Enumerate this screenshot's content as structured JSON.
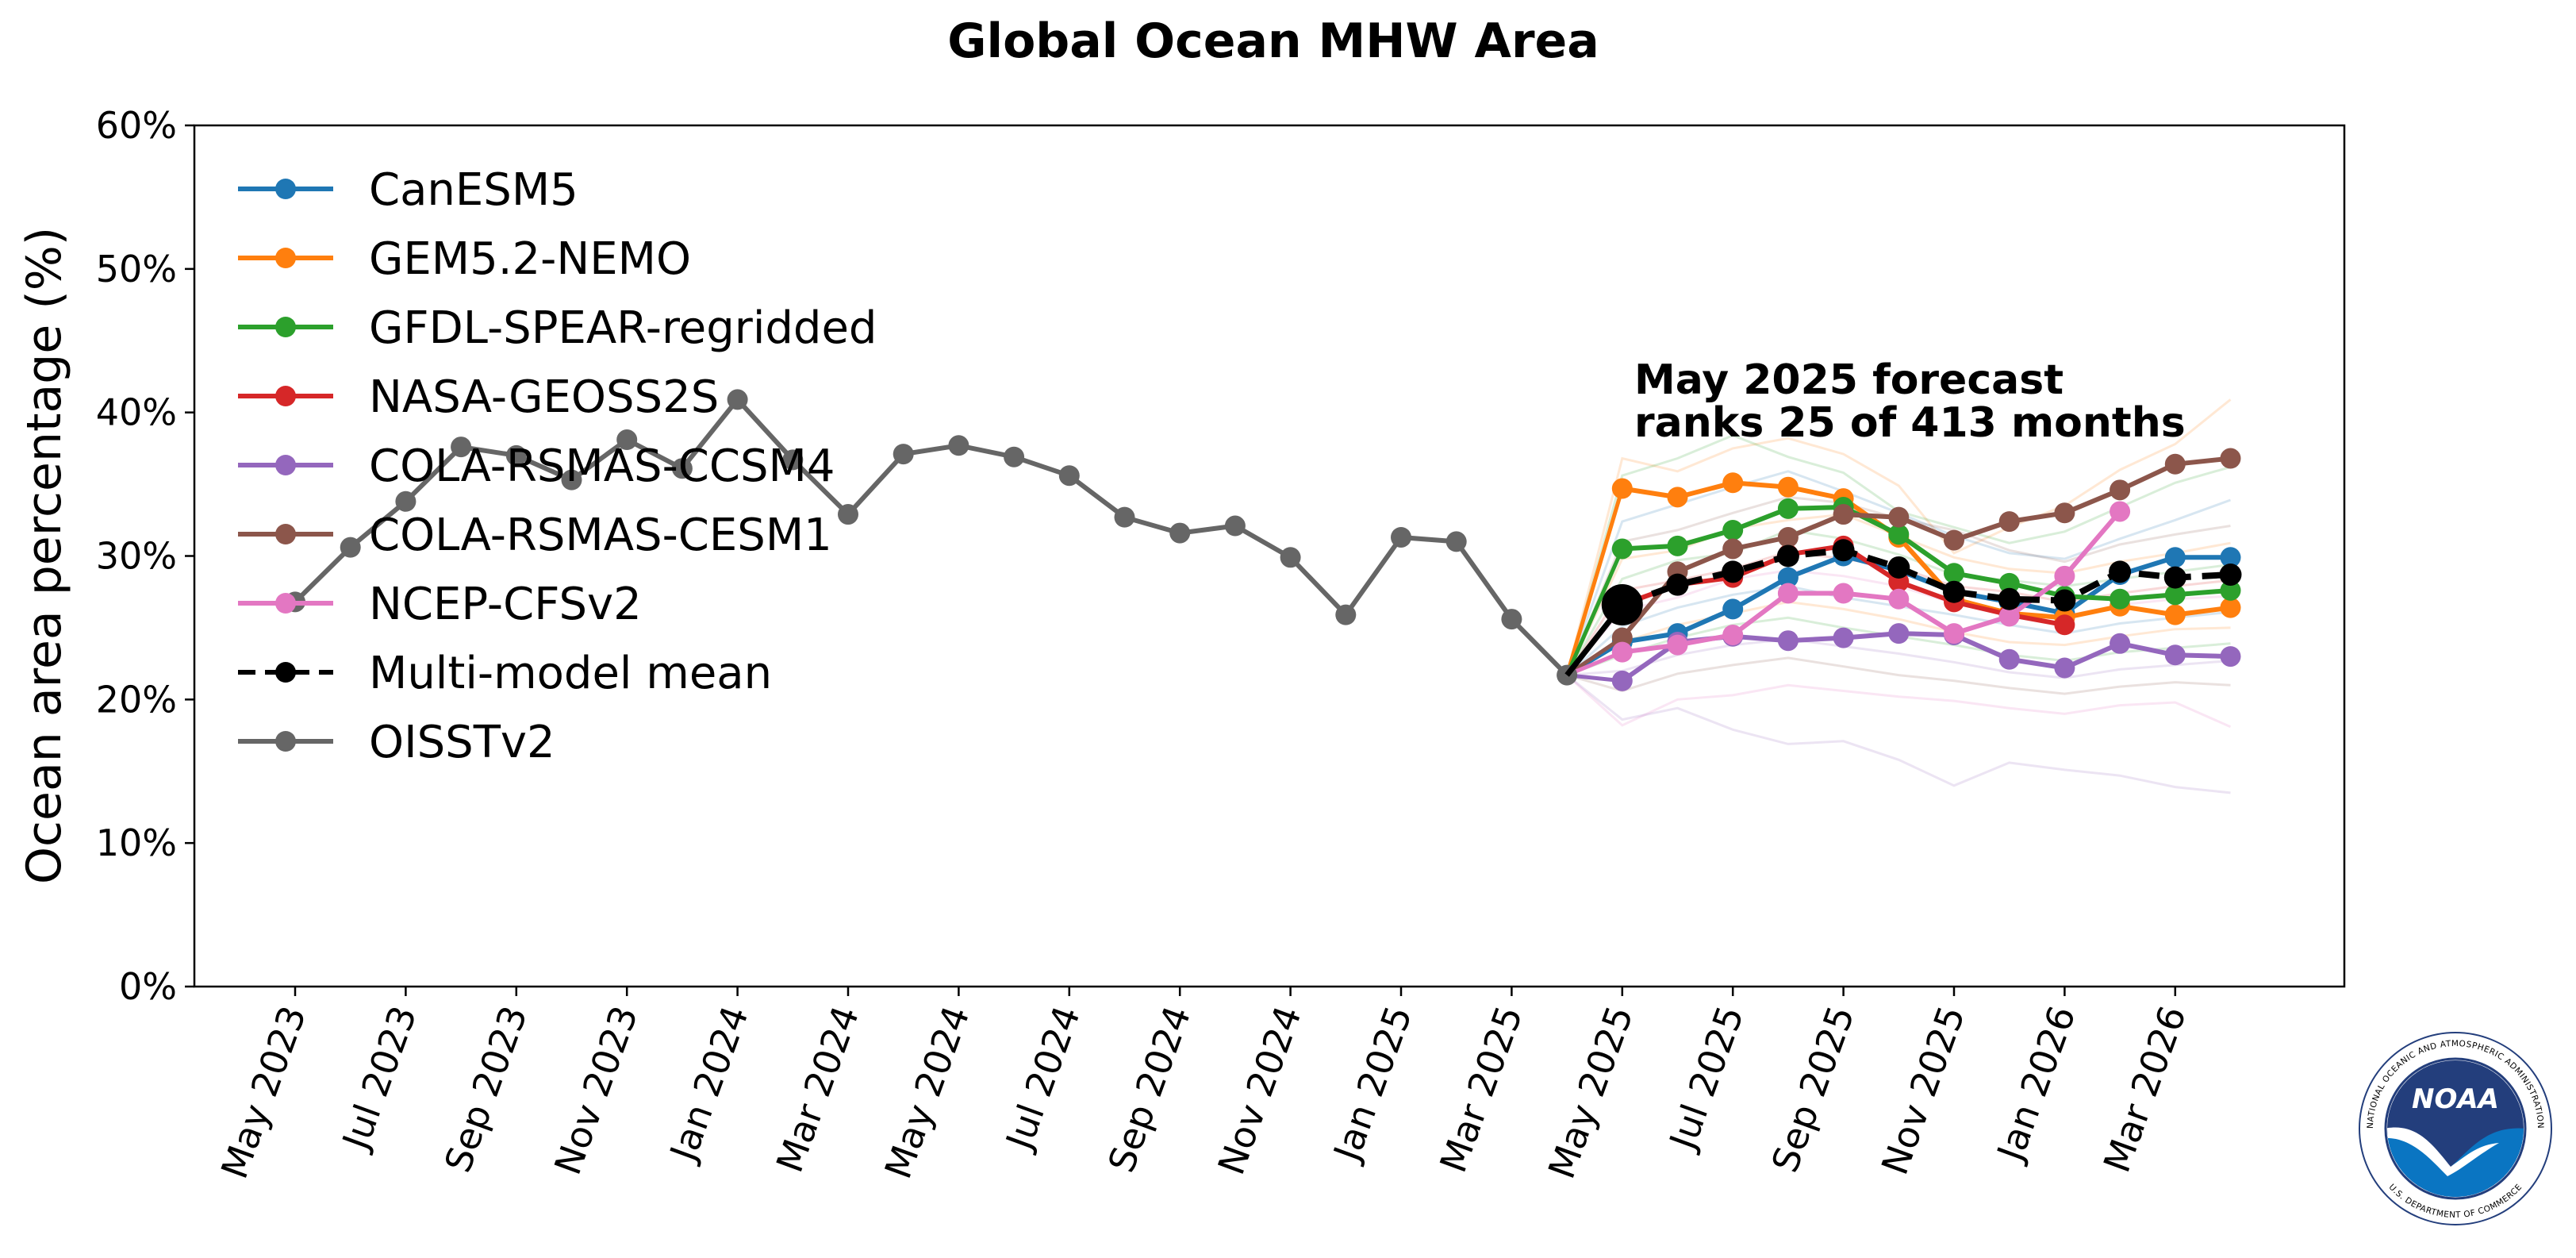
{
  "chart_data": {
    "type": "line",
    "title": "Global Ocean MHW Area",
    "ylabel": "Ocean area percentage (%)",
    "xlabel": "",
    "ylim": [
      0,
      60
    ],
    "yticks": [
      "0%",
      "10%",
      "20%",
      "30%",
      "40%",
      "50%",
      "60%"
    ],
    "yticks_values": [
      0,
      10,
      20,
      30,
      40,
      50,
      60
    ],
    "x_months": [
      "2023-05",
      "2023-06",
      "2023-07",
      "2023-08",
      "2023-09",
      "2023-10",
      "2023-11",
      "2023-12",
      "2024-01",
      "2024-02",
      "2024-03",
      "2024-04",
      "2024-05",
      "2024-06",
      "2024-07",
      "2024-08",
      "2024-09",
      "2024-10",
      "2024-11",
      "2024-12",
      "2025-01",
      "2025-02",
      "2025-03",
      "2025-04",
      "2025-05",
      "2025-06",
      "2025-07",
      "2025-08",
      "2025-09",
      "2025-10",
      "2025-11",
      "2025-12",
      "2026-01",
      "2026-02",
      "2026-03",
      "2026-04"
    ],
    "xtick_labels": [
      "May 2023",
      "Jul 2023",
      "Sep 2023",
      "Nov 2023",
      "Jan 2024",
      "Mar 2024",
      "May 2024",
      "Jul 2024",
      "Sep 2024",
      "Nov 2024",
      "Jan 2025",
      "Mar 2025",
      "May 2025",
      "Jul 2025",
      "Sep 2025",
      "Nov 2025",
      "Jan 2026",
      "Mar 2026"
    ],
    "xtick_indices": [
      0,
      2,
      4,
      6,
      8,
      10,
      12,
      14,
      16,
      18,
      20,
      22,
      24,
      26,
      28,
      30,
      32,
      34
    ],
    "observed": {
      "name": "OISSTv2",
      "color": "#666666",
      "start_index": 0,
      "values": [
        26.8,
        30.6,
        33.8,
        37.6,
        37.0,
        35.3,
        38.1,
        36.1,
        40.9,
        36.7,
        32.9,
        37.1,
        37.7,
        36.9,
        35.6,
        32.7,
        31.6,
        32.1,
        29.9,
        25.9,
        31.3,
        31.0,
        25.6,
        21.7
      ]
    },
    "anchor_index": 23,
    "anchor_value": 21.7,
    "forecast_start_index": 24,
    "series": [
      {
        "name": "CanESM5",
        "color": "#1f77b4",
        "values": [
          24.0,
          24.6,
          26.3,
          28.5,
          30.0,
          29.0,
          27.5,
          26.8,
          26.0,
          28.7,
          29.9,
          29.9
        ]
      },
      {
        "name": "GEM5.2-NEMO",
        "color": "#ff7f0e",
        "values": [
          34.7,
          34.1,
          35.1,
          34.8,
          34.0,
          31.3,
          27.0,
          26.0,
          25.7,
          26.5,
          25.9,
          26.4
        ]
      },
      {
        "name": "GFDL-SPEAR-regridded",
        "color": "#2ca02c",
        "values": [
          30.5,
          30.7,
          31.8,
          33.3,
          33.4,
          31.5,
          28.8,
          28.1,
          27.2,
          27.0,
          27.3,
          27.6
        ]
      },
      {
        "name": "NASA-GEOSS2S",
        "color": "#d62728",
        "values": [
          26.6,
          28.0,
          28.5,
          30.1,
          30.7,
          28.2,
          26.8,
          25.9,
          25.2
        ]
      },
      {
        "name": "COLA-RSMAS-CCSM4",
        "color": "#9467bd",
        "values": [
          21.3,
          24.0,
          24.4,
          24.1,
          24.3,
          24.6,
          24.5,
          22.8,
          22.2,
          23.9,
          23.1,
          23.0
        ]
      },
      {
        "name": "COLA-RSMAS-CESM1",
        "color": "#8c564b",
        "values": [
          24.3,
          28.9,
          30.5,
          31.3,
          32.9,
          32.7,
          31.1,
          32.4,
          33.0,
          34.6,
          36.4,
          36.8
        ]
      },
      {
        "name": "NCEP-CFSv2",
        "color": "#e377c2",
        "values": [
          23.3,
          23.8,
          24.5,
          27.4,
          27.4,
          27.0,
          24.6,
          25.8,
          28.6,
          33.1
        ]
      }
    ],
    "mean": {
      "name": "Multi-model mean",
      "color": "#000000",
      "values": [
        26.6,
        28.0,
        28.9,
        30.0,
        30.4,
        29.2,
        27.5,
        27.0,
        26.9,
        28.9,
        28.5,
        28.7
      ]
    },
    "ensemble_spread": [
      [
        36.8,
        35.9,
        37.5,
        38.2,
        37.1,
        34.9,
        30.2,
        32.0,
        33.5,
        36.0,
        37.8,
        40.9
      ],
      [
        35.6,
        36.8,
        38.4,
        36.9,
        35.8,
        33.1,
        32.0,
        30.9,
        31.7,
        33.4,
        35.1,
        36.2
      ],
      [
        32.4,
        33.6,
        34.8,
        35.9,
        34.5,
        33.0,
        31.4,
        30.2,
        29.8,
        31.2,
        32.5,
        33.9
      ],
      [
        31.0,
        31.8,
        33.0,
        34.1,
        33.7,
        32.6,
        31.8,
        30.4,
        29.6,
        30.8,
        31.5,
        32.1
      ],
      [
        29.8,
        30.4,
        31.9,
        32.5,
        32.9,
        31.4,
        29.9,
        29.1,
        28.8,
        29.6,
        30.2,
        30.9
      ],
      [
        28.4,
        29.7,
        30.2,
        31.8,
        31.2,
        30.1,
        28.7,
        28.3,
        27.9,
        28.4,
        28.9,
        29.4
      ],
      [
        27.6,
        28.3,
        29.1,
        30.3,
        29.8,
        29.2,
        27.9,
        27.5,
        26.8,
        27.4,
        27.9,
        28.3
      ],
      [
        26.2,
        27.1,
        28.4,
        29.0,
        28.6,
        27.9,
        26.7,
        26.0,
        25.8,
        26.6,
        27.0,
        27.2
      ],
      [
        25.1,
        26.4,
        27.3,
        27.9,
        27.1,
        26.5,
        25.9,
        25.2,
        24.6,
        25.3,
        25.7,
        26.1
      ],
      [
        24.0,
        25.2,
        26.0,
        26.8,
        26.3,
        25.6,
        24.7,
        24.0,
        23.8,
        24.4,
        24.9,
        25.0
      ],
      [
        23.1,
        24.3,
        25.2,
        25.7,
        25.0,
        24.4,
        23.8,
        23.1,
        22.7,
        23.3,
        23.6,
        23.9
      ],
      [
        22.0,
        23.1,
        23.8,
        24.2,
        23.7,
        23.2,
        22.6,
        21.9,
        21.5,
        22.1,
        22.4,
        22.7
      ],
      [
        20.6,
        21.8,
        22.4,
        22.9,
        22.3,
        21.7,
        21.3,
        20.8,
        20.4,
        20.9,
        21.2,
        21.0
      ],
      [
        18.2,
        20.0,
        20.3,
        21.0,
        20.6,
        20.2,
        19.9,
        19.4,
        19.0,
        19.6,
        19.8,
        18.1
      ],
      [
        18.6,
        19.4,
        17.9,
        16.9,
        17.1,
        15.8,
        14.0,
        15.6,
        15.1,
        14.7,
        13.9,
        13.5
      ]
    ],
    "legend": {
      "location": "upper-left",
      "entries": [
        "CanESM5",
        "GEM5.2-NEMO",
        "GFDL-SPEAR-regridded",
        "NASA-GEOSS2S",
        "COLA-RSMAS-CCSM4",
        "COLA-RSMAS-CESM1",
        "NCEP-CFSv2",
        "Multi-model mean",
        "OISSTv2"
      ]
    },
    "annotations": [
      "May 2025 forecast",
      "ranks 25 of 413 months"
    ]
  },
  "logo": {
    "name": "NOAA",
    "ring_text_top": "NATIONAL OCEANIC AND ATMOSPHERIC ADMINISTRATION",
    "ring_text_bottom": "U.S. DEPARTMENT OF COMMERCE",
    "color_dark": "#233e7c",
    "color_blue": "#0a75c2"
  }
}
